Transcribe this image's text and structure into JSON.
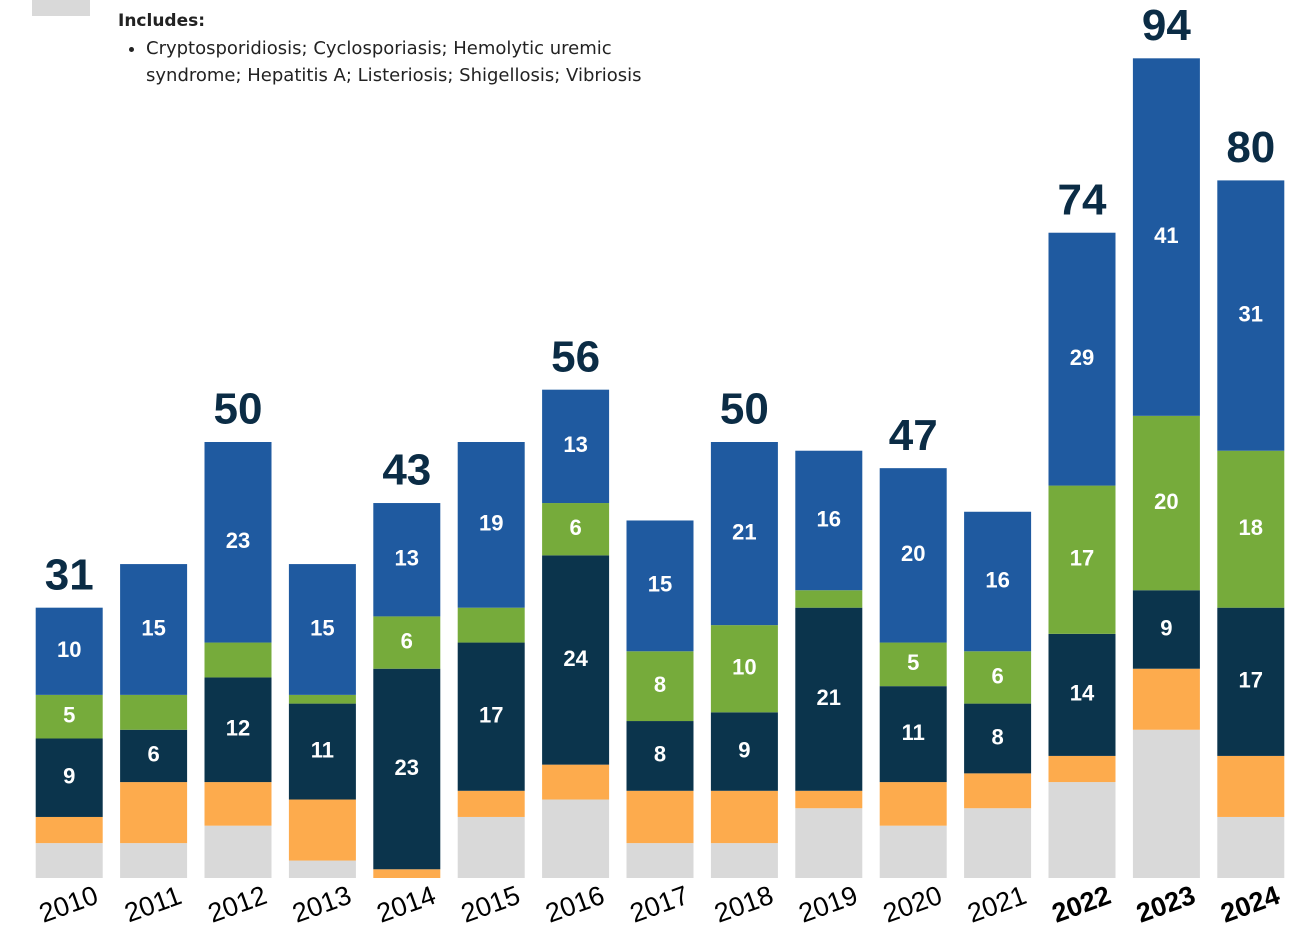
{
  "chart_data": {
    "type": "stacked_bar",
    "legend": {
      "heading": "Includes:",
      "items": [
        "Cryptosporidiosis; Cyclosporiasis; Hemolytic uremic syndrome; Hepatitis A; Listeriosis; Shigellosis; Vibriosis"
      ],
      "color": "#d9d9d9"
    },
    "categories": [
      "2010",
      "2011",
      "2012",
      "2013",
      "2014",
      "2015",
      "2016",
      "2017",
      "2018",
      "2019",
      "2020",
      "2021",
      "2022",
      "2023",
      "2024"
    ],
    "bold_categories": [
      12,
      13,
      14
    ],
    "ylim": [
      0,
      100
    ],
    "series": [
      {
        "color": "#d9d9d9",
        "values": [
          4,
          4,
          6,
          2,
          0,
          7,
          9,
          4,
          4,
          8,
          6,
          8,
          11,
          17,
          7
        ]
      },
      {
        "color": "#fdab4d",
        "values": [
          3,
          7,
          5,
          7,
          1,
          3,
          4,
          6,
          6,
          2,
          5,
          4,
          3,
          7,
          7
        ]
      },
      {
        "color": "#0b344c",
        "values": [
          9,
          6,
          12,
          11,
          23,
          17,
          24,
          8,
          9,
          21,
          11,
          8,
          14,
          9,
          17
        ],
        "value_labels": [
          "9",
          "6",
          "12",
          "11",
          "23",
          "17",
          "24",
          "8",
          "9",
          "21",
          "11",
          "8",
          "14",
          "9",
          "17"
        ]
      },
      {
        "color": "#76ab3b",
        "values": [
          5,
          4,
          4,
          1,
          6,
          4,
          6,
          8,
          10,
          2,
          5,
          6,
          17,
          20,
          18
        ],
        "value_labels": [
          "5",
          null,
          null,
          null,
          "6",
          null,
          "6",
          "8",
          "10",
          null,
          "5",
          "6",
          "17",
          "20",
          "18"
        ]
      },
      {
        "color": "#1f5aa0",
        "values": [
          10,
          15,
          23,
          15,
          13,
          19,
          13,
          15,
          21,
          16,
          20,
          16,
          29,
          41,
          31
        ],
        "value_labels": [
          "10",
          "15",
          "23",
          "15",
          "13",
          "19",
          "13",
          "15",
          "21",
          "16",
          "20",
          "16",
          "29",
          "41",
          "31"
        ]
      }
    ],
    "totals": [
      31,
      null,
      50,
      null,
      43,
      null,
      56,
      null,
      50,
      null,
      47,
      null,
      74,
      94,
      80
    ]
  }
}
